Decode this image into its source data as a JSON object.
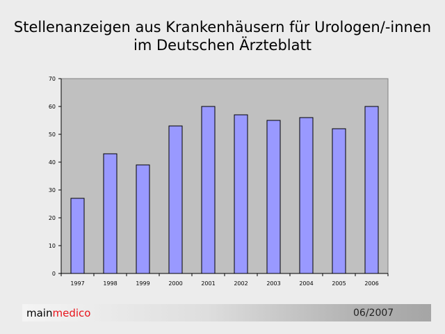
{
  "title_line1": "Stellenanzeigen aus Krankenhäusern für Urologen/-innen",
  "title_line2": "im Deutschen Ärzteblatt",
  "chart_data": {
    "type": "bar",
    "categories": [
      "1997",
      "1998",
      "1999",
      "2000",
      "2001",
      "2002",
      "2003",
      "2004",
      "2005",
      "2006"
    ],
    "values": [
      27,
      43,
      39,
      53,
      60,
      57,
      55,
      56,
      52,
      60
    ],
    "ylim": [
      0,
      70
    ],
    "yticks": [
      "0",
      "10",
      "20",
      "30",
      "40",
      "50",
      "60",
      "70"
    ],
    "grid": false,
    "legend": "none",
    "colors": {
      "bar": "#9999ff",
      "plot_area": "#c0c0c0",
      "bar_edge": "#000000"
    }
  },
  "footer": {
    "brand_part1": "main",
    "brand_part2": "medico",
    "date": "06/2007",
    "brand_accent_color": "#e8141b"
  }
}
